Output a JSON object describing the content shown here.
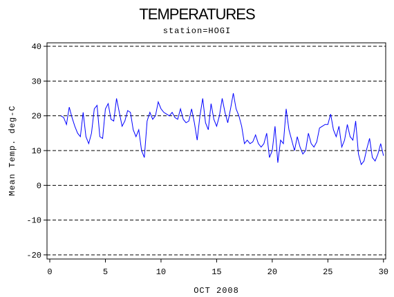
{
  "chart_data": {
    "type": "line",
    "title": "TEMPERATURES",
    "subtitle": "station=HOGI",
    "xlabel": "OCT 2008",
    "ylabel": "Mean Temp. deg-C",
    "xlim": [
      -0.25,
      30.2
    ],
    "xticks": [
      0,
      5,
      10,
      15,
      20,
      25,
      30
    ],
    "ylim": [
      -21.2,
      41
    ],
    "yticks": [
      -20,
      -10,
      0,
      10,
      20,
      30,
      40
    ],
    "grid": true,
    "x": [
      1.0,
      1.25,
      1.5,
      1.75,
      2.0,
      2.25,
      2.5,
      2.75,
      3.0,
      3.25,
      3.5,
      3.75,
      4.0,
      4.25,
      4.5,
      4.75,
      5.0,
      5.25,
      5.5,
      5.75,
      6.0,
      6.25,
      6.5,
      6.75,
      7.0,
      7.25,
      7.5,
      7.75,
      8.0,
      8.25,
      8.5,
      8.75,
      9.0,
      9.25,
      9.5,
      9.75,
      10.0,
      10.25,
      10.5,
      10.75,
      11.0,
      11.25,
      11.5,
      11.75,
      12.0,
      12.25,
      12.5,
      12.75,
      13.0,
      13.25,
      13.5,
      13.75,
      14.0,
      14.25,
      14.5,
      14.75,
      15.0,
      15.25,
      15.5,
      15.75,
      16.0,
      16.25,
      16.5,
      16.75,
      17.0,
      17.25,
      17.5,
      17.75,
      18.0,
      18.25,
      18.5,
      18.75,
      19.0,
      19.25,
      19.5,
      19.75,
      20.0,
      20.25,
      20.5,
      20.75,
      21.0,
      21.25,
      21.5,
      21.75,
      22.0,
      22.25,
      22.5,
      22.75,
      23.0,
      23.25,
      23.5,
      23.75,
      24.0,
      24.25,
      24.5,
      24.75,
      25.0,
      25.25,
      25.5,
      25.75,
      26.0,
      26.25,
      26.5,
      26.75,
      27.0,
      27.25,
      27.5,
      27.75,
      28.0,
      28.25,
      28.5,
      28.75,
      29.0,
      29.25,
      29.5,
      29.75,
      30.0
    ],
    "series": [
      {
        "color": "#0000ff",
        "values": [
          20,
          19.5,
          17.5,
          22.5,
          19.5,
          17,
          15,
          14,
          21,
          14,
          12,
          15,
          22,
          23,
          14,
          13.5,
          22,
          23.5,
          19,
          18.5,
          25,
          21,
          17,
          18.5,
          21.5,
          21,
          16,
          14,
          16,
          10,
          8,
          18.5,
          21,
          19,
          20,
          24,
          22,
          21,
          20.5,
          20,
          21,
          19.5,
          19,
          22,
          19,
          18,
          18.5,
          22,
          18,
          13,
          20,
          25,
          18,
          16,
          23.5,
          19,
          17,
          20,
          25,
          21,
          18,
          22,
          26.5,
          22,
          20,
          17,
          12,
          13,
          12,
          12.5,
          14.5,
          12,
          11,
          12,
          15,
          8,
          10,
          17,
          6.5,
          13,
          12,
          22,
          16,
          13,
          10,
          14,
          11,
          9,
          10,
          15,
          12,
          11,
          12.5,
          16.5,
          17,
          17.5,
          17.5,
          20.5,
          16,
          14,
          17,
          11,
          13,
          17.5,
          14,
          13,
          18.5,
          9,
          6,
          7,
          10.5,
          13.5,
          8,
          7,
          9,
          12,
          8.5
        ]
      }
    ]
  }
}
